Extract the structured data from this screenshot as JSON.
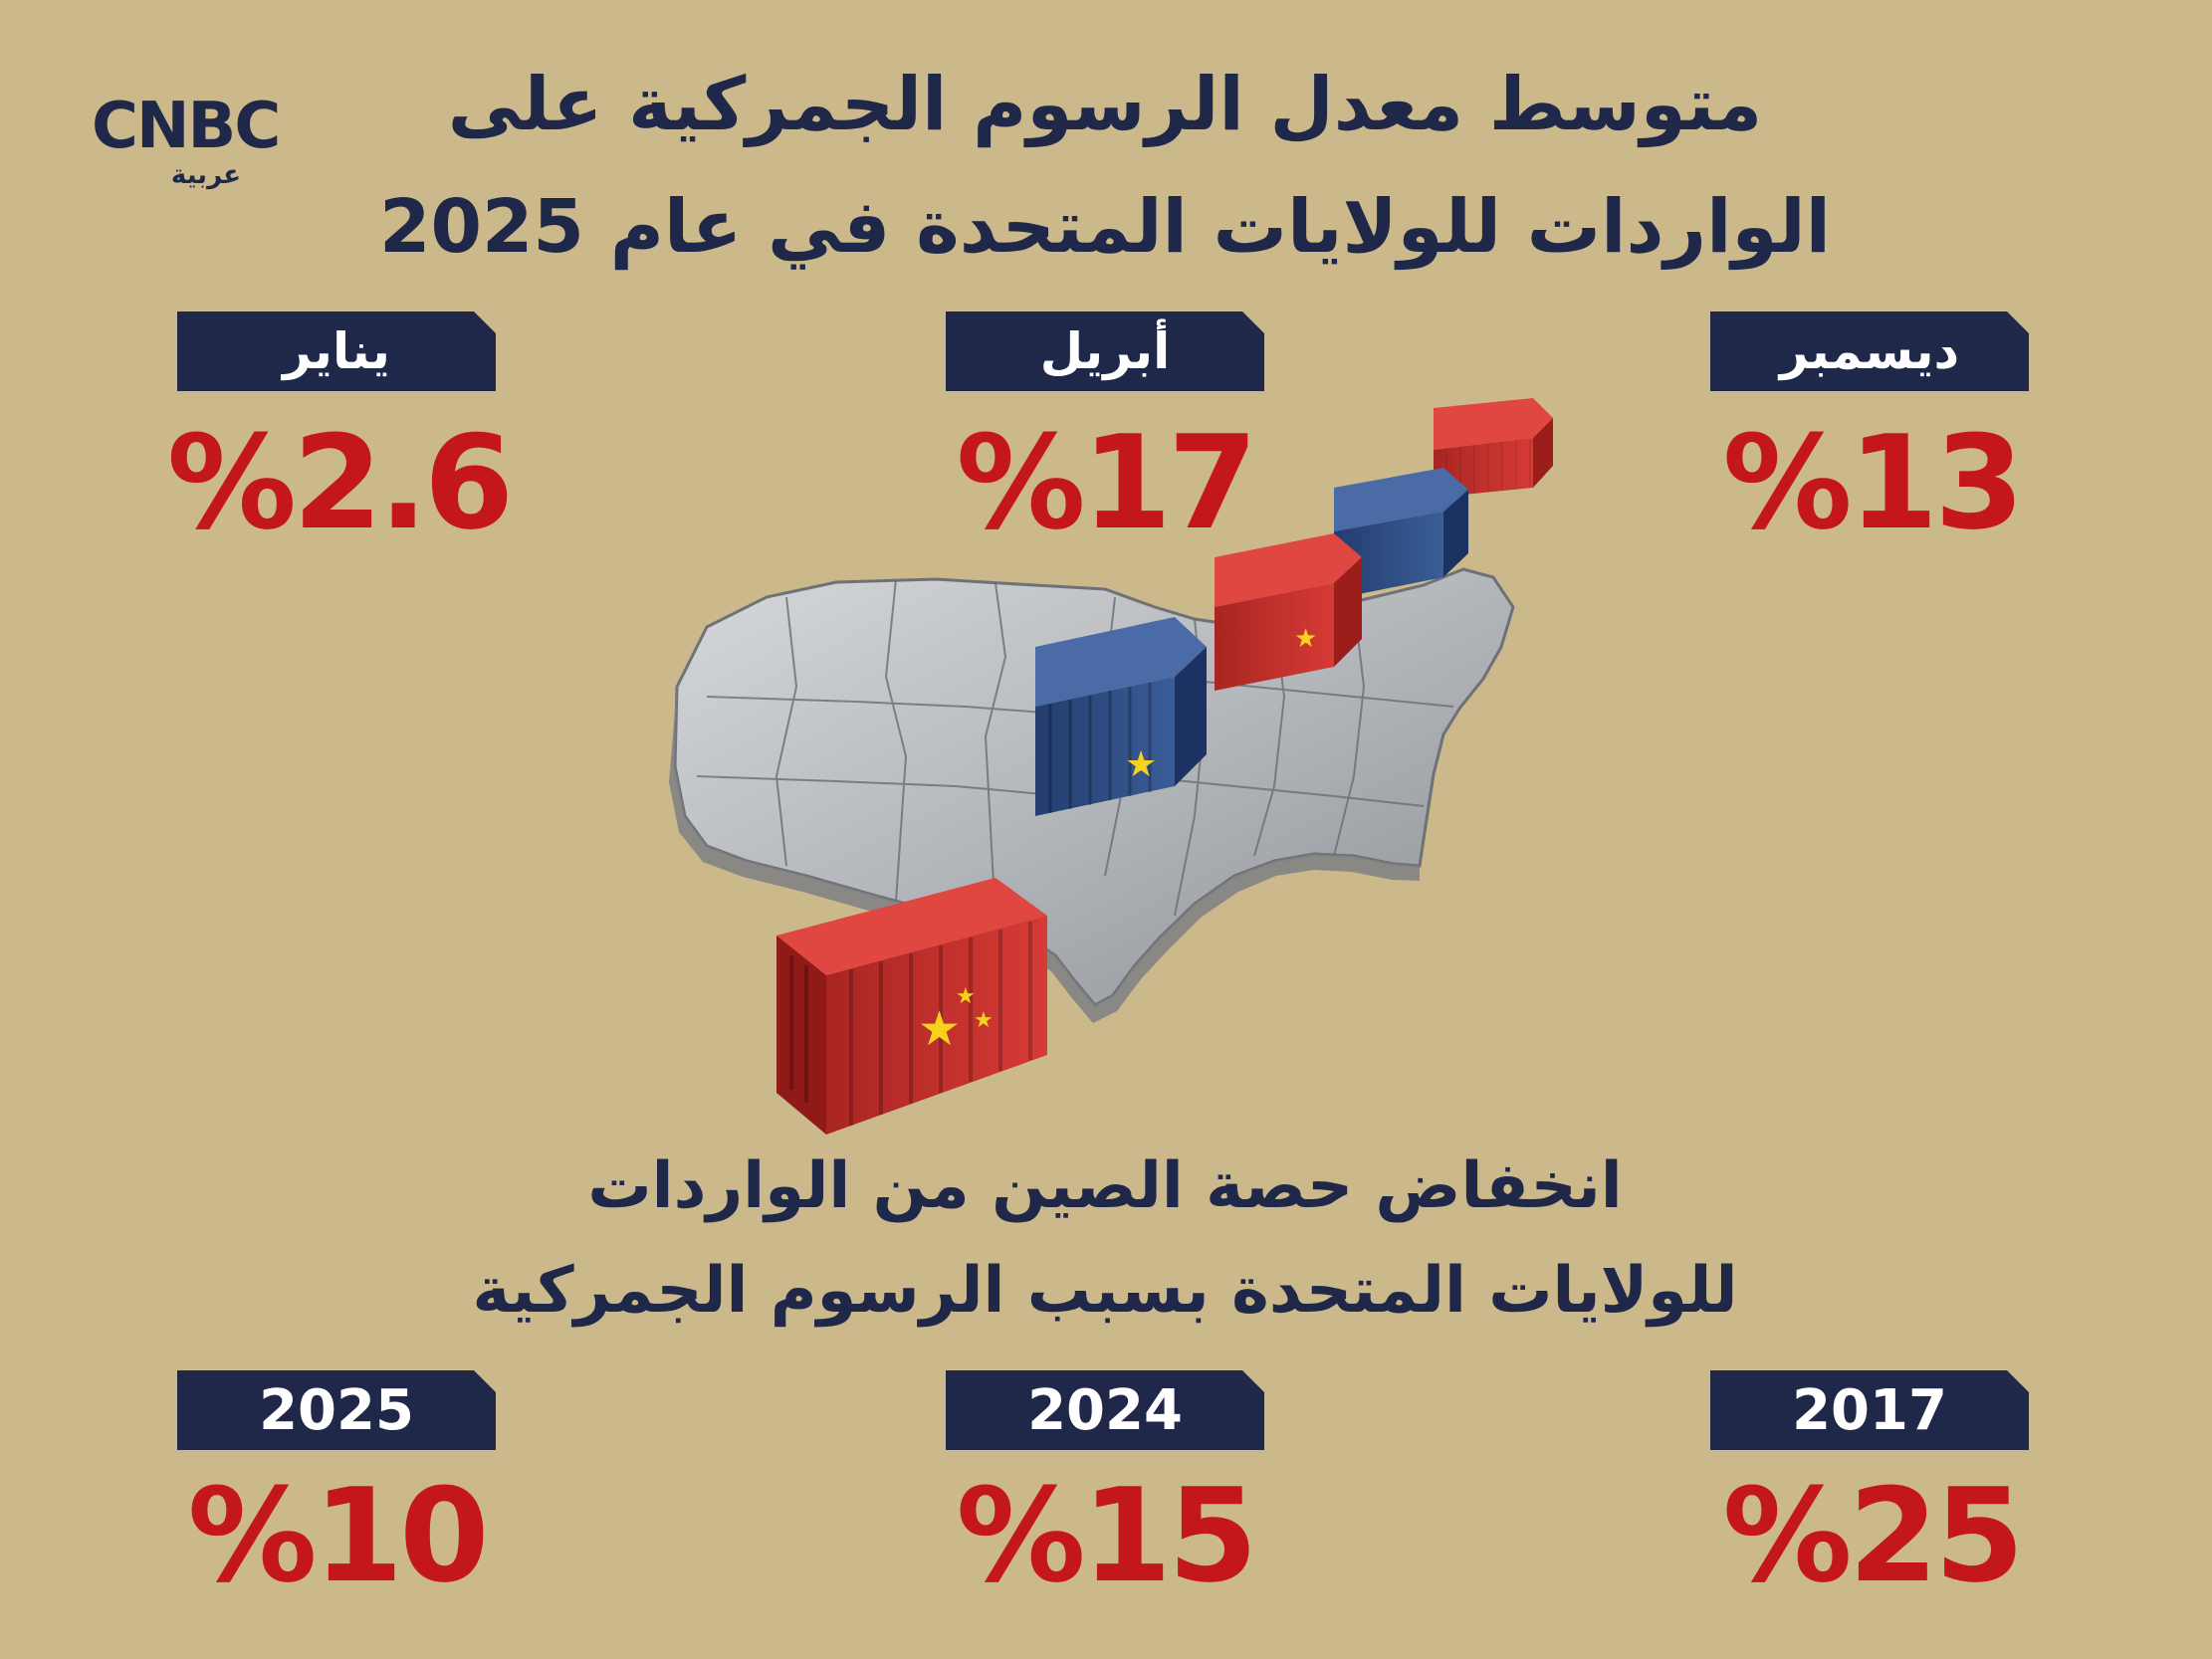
{
  "logo": {
    "main": "CNBC",
    "sub": "عربية"
  },
  "title": {
    "line1": "متوسط معدل الرسوم الجمركية على",
    "line2": "الواردات للولايات المتحدة في عام 2025"
  },
  "months": [
    {
      "label": "ديسمبر",
      "value": "%13"
    },
    {
      "label": "أبريل",
      "value": "%17"
    },
    {
      "label": "يناير",
      "value": "%2.6"
    }
  ],
  "subtitle": {
    "line1": "انخفاض حصة الصين من الواردات",
    "line2": "للولايات المتحدة بسبب الرسوم الجمركية"
  },
  "years": [
    {
      "label": "2017",
      "value": "%25"
    },
    {
      "label": "2024",
      "value": "%15"
    },
    {
      "label": "2025",
      "value": "%10"
    }
  ],
  "colors": {
    "background": "#ccb98b",
    "navy": "#1f2849",
    "red": "#c4171d",
    "container_red": "#c8312e",
    "container_blue": "#2f4f86",
    "map_gray": "#b9bcc0"
  }
}
